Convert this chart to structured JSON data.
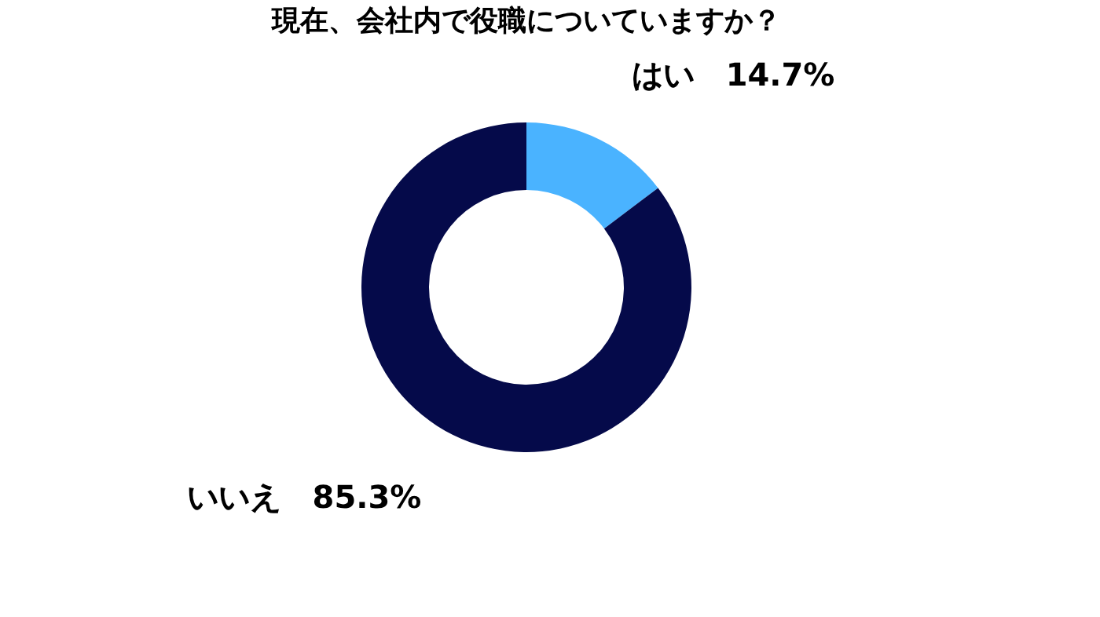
{
  "chart_data": {
    "type": "donut",
    "title": "現在、会社内で役職についていますか？",
    "categories": [
      "はい",
      "いいえ"
    ],
    "values": [
      14.7,
      85.3
    ],
    "value_labels": [
      "14.7%",
      "85.3%"
    ],
    "colors": [
      "#4ab3ff",
      "#050a4a"
    ],
    "legend": false
  }
}
